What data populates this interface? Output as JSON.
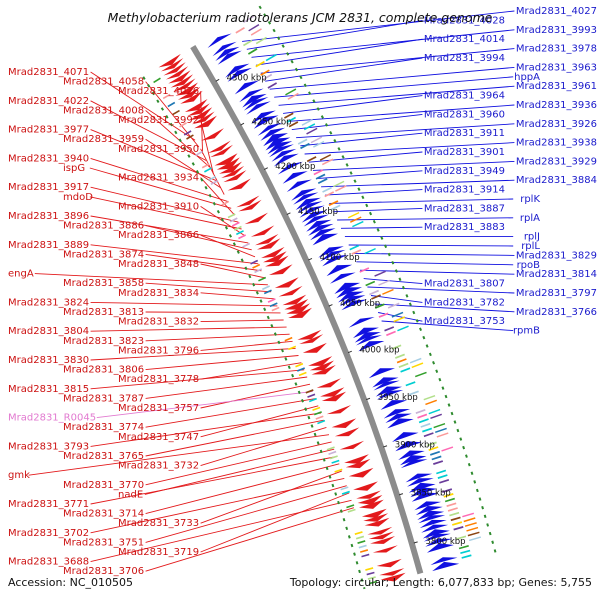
{
  "title": "Methylobacterium radiotolerans JCM 2831, complete genome",
  "accession": "Accession: NC_010505",
  "topology": "Topology: circular; Length: 6,077,833 bp; Genes: 5,755",
  "colors": {
    "forward_gene": "#e31a1c",
    "reverse_gene": "#1010e0",
    "right_label": "#1a1acc",
    "left_label": "#cc1111",
    "rna_label": "#e27ad0",
    "backbone": "#8c8c8c",
    "dots": "#2e8b2e"
  },
  "ticks": [
    "4300 kbp",
    "4250 kbp",
    "4200 kbp",
    "4150 kbp",
    "4100 kbp",
    "4050 kbp",
    "4000 kbp",
    "3950 kbp",
    "3900 kbp",
    "3850 kbp",
    "3800 kbp"
  ],
  "right_labels": [
    "Mrad2831_4027",
    "Mrad2831_4028",
    "Mrad2831_3993",
    "Mrad2831_4014",
    "Mrad2831_3978",
    "Mrad2831_3994",
    "Mrad2831_3963",
    "hppA",
    "Mrad2831_3961",
    "Mrad2831_3964",
    "Mrad2831_3936",
    "Mrad2831_3960",
    "Mrad2831_3926",
    "Mrad2831_3911",
    "Mrad2831_3938",
    "Mrad2831_3901",
    "Mrad2831_3929",
    "Mrad2831_3949",
    "Mrad2831_3884",
    "Mrad2831_3914",
    "rplK",
    "Mrad2831_3887",
    "rplA",
    "Mrad2831_3883",
    "rplJ",
    "rplL",
    "Mrad2831_3829",
    "rpoB",
    "Mrad2831_3814",
    "Mrad2831_3807",
    "Mrad2831_3797",
    "Mrad2831_3782",
    "Mrad2831_3766",
    "Mrad2831_3753",
    "rpmB"
  ],
  "left_labels": [
    "Mrad2831_4071",
    "Mrad2831_4058",
    "Mrad2831_4026",
    "Mrad2831_4022",
    "Mrad2831_4008",
    "Mrad2831_3992",
    "Mrad2831_3977",
    "Mrad2831_3959",
    "Mrad2831_3950",
    "Mrad2831_3940",
    "ispG",
    "Mrad2831_3934",
    "Mrad2831_3917",
    "mdoD",
    "Mrad2831_3910",
    "Mrad2831_3896",
    "Mrad2831_3886",
    "Mrad2831_3866",
    "Mrad2831_3889",
    "Mrad2831_3874",
    "Mrad2831_3848",
    "engA",
    "Mrad2831_3858",
    "Mrad2831_3834",
    "Mrad2831_3824",
    "Mrad2831_3813",
    "Mrad2831_3832",
    "Mrad2831_3804",
    "Mrad2831_3823",
    "Mrad2831_3796",
    "Mrad2831_3830",
    "Mrad2831_3806",
    "Mrad2831_3778",
    "Mrad2831_3815",
    "Mrad2831_3787",
    "Mrad2831_3757",
    "Mrad2831_R0045",
    "Mrad2831_3774",
    "Mrad2831_3747",
    "Mrad2831_3793",
    "Mrad2831_3765",
    "Mrad2831_3732",
    "gmk",
    "Mrad2831_3770",
    "nadE",
    "Mrad2831_3771",
    "Mrad2831_3714",
    "Mrad2831_3733",
    "Mrad2831_3702",
    "Mrad2831_3751",
    "Mrad2831_3719",
    "Mrad2831_3688",
    "Mrad2831_3706"
  ],
  "rna_labels": [
    "Mrad2831_R0045"
  ]
}
